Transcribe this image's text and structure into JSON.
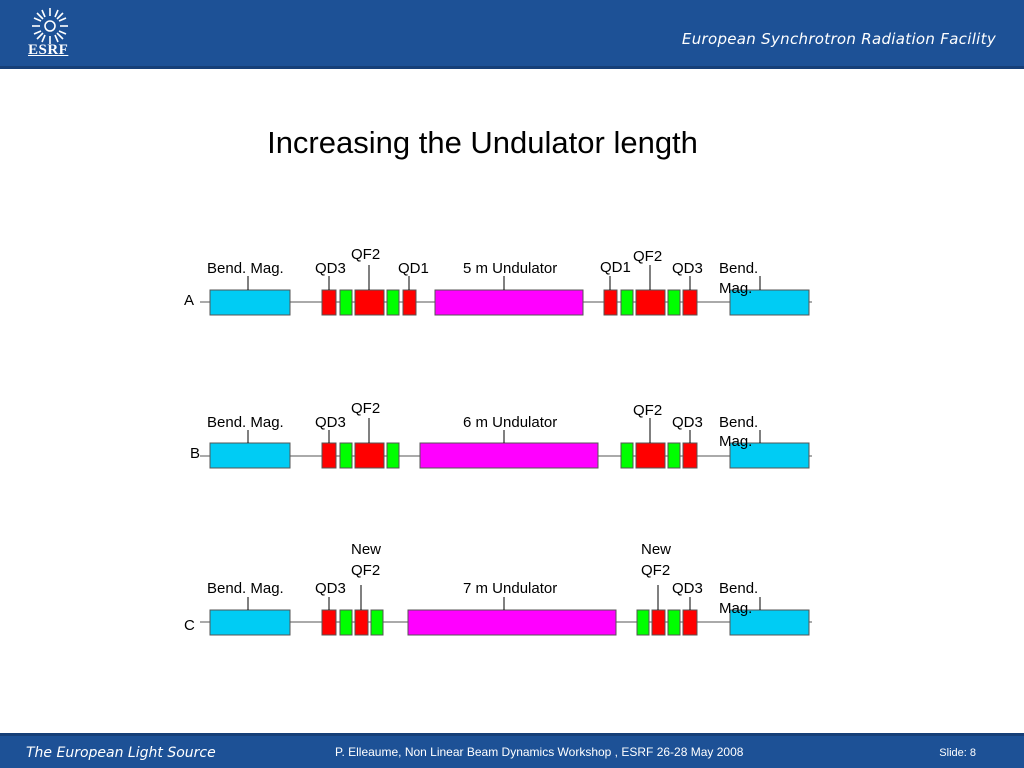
{
  "header": {
    "logo_text": "ESRF",
    "organization": "European Synchrotron Radiation Facility"
  },
  "slide": {
    "title": "Increasing the Undulator  length"
  },
  "rows": {
    "a": {
      "letter": "A",
      "labels": {
        "bend_left": "Bend. Mag.",
        "qd3_left": "QD3",
        "qf2_left": "QF2",
        "qd1_left": "QD1",
        "undulator": "5 m Undulator",
        "qd1_right": "QD1",
        "qf2_right": "QF2",
        "qd3_right": "QD3",
        "bend_right_1": "Bend.",
        "bend_right_2": "Mag."
      }
    },
    "b": {
      "letter": "B",
      "labels": {
        "bend_left": "Bend. Mag.",
        "qd3_left": "QD3",
        "qf2_left": "QF2",
        "undulator": "6 m Undulator",
        "qf2_right": "QF2",
        "qd3_right": "QD3",
        "bend_right_1": "Bend.",
        "bend_right_2": "Mag."
      }
    },
    "c": {
      "letter": "C",
      "labels": {
        "bend_left": "Bend. Mag.",
        "qd3_left": "QD3",
        "newqf2_left_1": "New",
        "newqf2_left_2": "QF2",
        "undulator": "7 m Undulator",
        "newqf2_right_1": "New",
        "newqf2_right_2": "QF2",
        "qd3_right": "QD3",
        "bend_right_1": "Bend.",
        "bend_right_2": "Mag."
      }
    }
  },
  "footer": {
    "left": "The European Light Source",
    "center": "P. Elleaume, Non Linear Beam Dynamics Workshop , ESRF 26-28 May 2008",
    "slide_number": "Slide: 8"
  },
  "colors": {
    "header_blue": "#1d5196",
    "bending_magnet": "#00ccf4",
    "undulator": "#ff00ff",
    "quad_red": "#ff0000",
    "quad_green": "#00ff00"
  }
}
